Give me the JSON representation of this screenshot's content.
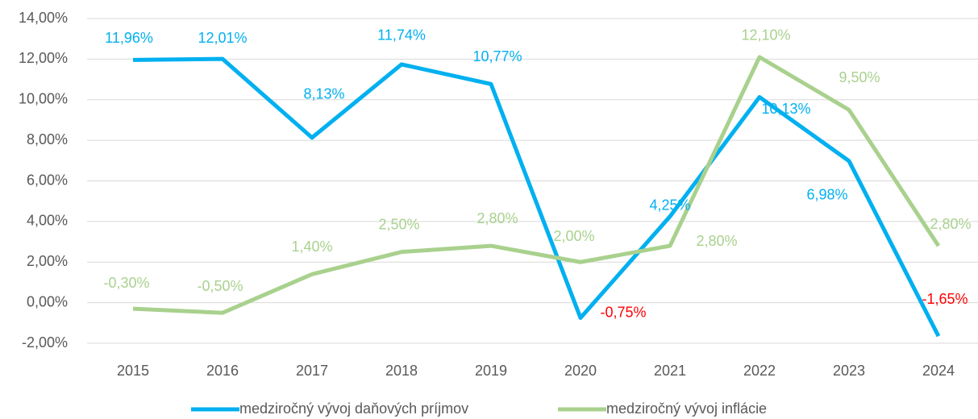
{
  "chart_data": {
    "type": "line",
    "categories": [
      "2015",
      "2016",
      "2017",
      "2018",
      "2019",
      "2020",
      "2021",
      "2022",
      "2023",
      "2024"
    ],
    "series": [
      {
        "name": "medziročný vývoj daňových príjmov",
        "color": "#00b0f0",
        "label_color": "#00b0f0",
        "negative_label_color": "#ff0000",
        "values": [
          11.96,
          12.01,
          8.13,
          11.74,
          10.77,
          -0.75,
          4.25,
          10.13,
          6.98,
          -1.65
        ],
        "value_labels": [
          "11,96%",
          "12,01%",
          "8,13%",
          "11,74%",
          "10,77%",
          "-0,75%",
          "4,25%",
          "10,13%",
          "6,98%",
          "-1,65%"
        ]
      },
      {
        "name": "medziročný vývoj inflácie",
        "color": "#a9d18e",
        "label_color": "#a9d18e",
        "values": [
          -0.3,
          -0.5,
          1.4,
          2.5,
          2.8,
          2.0,
          2.8,
          12.1,
          9.5,
          2.8
        ],
        "value_labels": [
          "-0,30%",
          "-0,50%",
          "1,40%",
          "2,50%",
          "2,80%",
          "2,00%",
          "2,80%",
          "12,10%",
          "9,50%",
          "2,80%"
        ]
      }
    ],
    "ylim": [
      -2,
      14
    ],
    "yticks": [
      {
        "value": -2,
        "label": "-2,00%"
      },
      {
        "value": 0,
        "label": "0,00%"
      },
      {
        "value": 2,
        "label": "2,00%"
      },
      {
        "value": 4,
        "label": "4,00%"
      },
      {
        "value": 6,
        "label": "6,00%"
      },
      {
        "value": 8,
        "label": "8,00%"
      },
      {
        "value": 10,
        "label": "10,00%"
      },
      {
        "value": 12,
        "label": "12,00%"
      },
      {
        "value": 14,
        "label": "14,00%"
      }
    ],
    "grid": true,
    "legend": "bottom"
  }
}
